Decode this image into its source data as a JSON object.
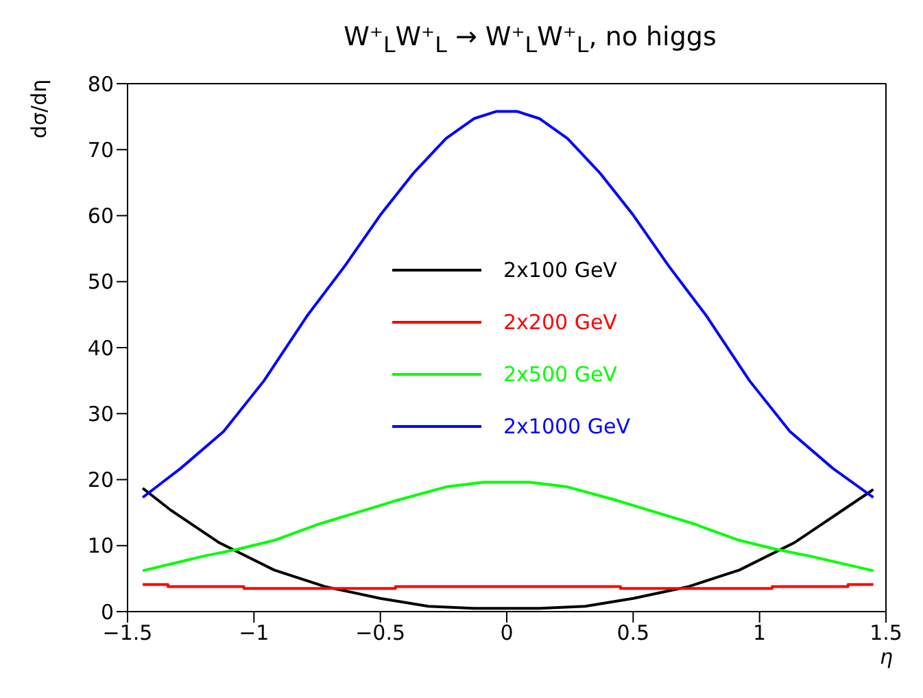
{
  "chart_data": {
    "type": "line",
    "title": "W⁺$_{L}$W⁺$_{L}$ → W⁺$_{L}$W⁺$_{L}$, no higgs",
    "xlabel": "η",
    "ylabel": "dσ/dη",
    "xlim": [
      -1.5,
      1.5
    ],
    "xticks": [
      -1.5,
      -1,
      -0.5,
      0,
      0.5,
      1,
      1.5
    ],
    "ylim": [
      0,
      80
    ],
    "yticks": [
      0,
      10,
      20,
      30,
      40,
      50,
      60,
      70,
      80
    ],
    "grid": false,
    "legend": "center",
    "series": [
      {
        "name": "2x100 GeV",
        "color": "#000000",
        "x": [
          -1.44,
          -1.33,
          -1.14,
          -0.92,
          -0.72,
          -0.5,
          -0.31,
          -0.13,
          0,
          0.13,
          0.31,
          0.5,
          0.72,
          0.92,
          1.14,
          1.33,
          1.45
        ],
        "values": [
          18.7,
          15.4,
          10.5,
          6.3,
          3.8,
          2.0,
          0.8,
          0.5,
          0.5,
          0.5,
          0.8,
          2.0,
          3.8,
          6.3,
          10.5,
          15.4,
          18.5
        ]
      },
      {
        "name": "2x200 GeV",
        "color": "#ff0000",
        "type": "step",
        "x": [
          -1.44,
          -1.34,
          -1.04,
          -0.44,
          0.45,
          1.05,
          1.35,
          1.45
        ],
        "values": [
          4.1,
          3.8,
          3.5,
          3.8,
          3.5,
          3.8,
          4.1,
          4.1
        ]
      },
      {
        "name": "2x500 GeV",
        "color": "#00ff00",
        "x": [
          -1.44,
          -1.2,
          -1.07,
          -0.92,
          -0.74,
          -0.44,
          -0.24,
          -0.09,
          0,
          0.09,
          0.24,
          0.44,
          0.74,
          0.92,
          1.07,
          1.2,
          1.45
        ],
        "values": [
          6.2,
          8.4,
          9.4,
          10.8,
          13.3,
          16.8,
          18.9,
          19.6,
          19.6,
          19.6,
          18.9,
          16.8,
          13.3,
          10.8,
          9.4,
          8.4,
          6.2
        ]
      },
      {
        "name": "2x1000 GeV",
        "color": "#0000ff",
        "x": [
          -1.44,
          -1.29,
          -1.12,
          -0.96,
          -0.79,
          -0.64,
          -0.5,
          -0.37,
          -0.24,
          -0.13,
          -0.04,
          0.04,
          0.13,
          0.24,
          0.37,
          0.5,
          0.64,
          0.79,
          0.96,
          1.12,
          1.29,
          1.45
        ],
        "values": [
          17.3,
          21.7,
          27.3,
          35,
          44.8,
          52.4,
          60.1,
          66.4,
          71.7,
          74.7,
          75.8,
          75.8,
          74.7,
          71.7,
          66.4,
          60.1,
          52.4,
          44.8,
          35,
          27.3,
          21.7,
          17.3
        ]
      }
    ]
  }
}
